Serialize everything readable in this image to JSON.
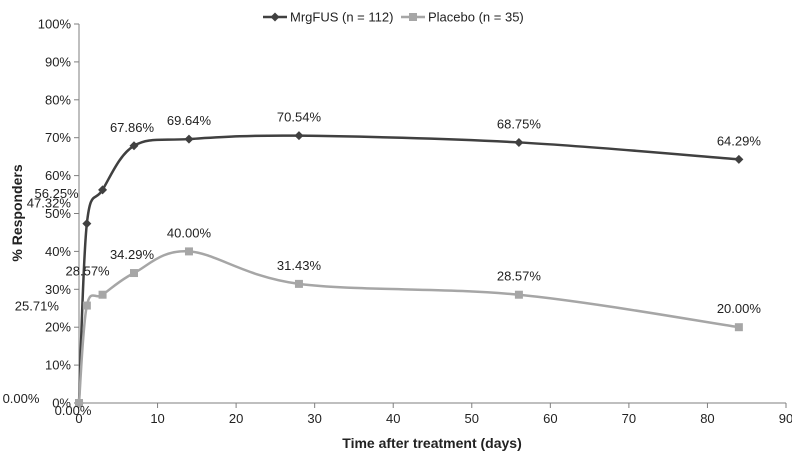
{
  "chart_data": {
    "type": "line",
    "title": "",
    "xlabel": "Time after treatment (days)",
    "ylabel": "% Responders",
    "xlim": [
      0,
      90
    ],
    "ylim": [
      0,
      100
    ],
    "x_ticks": [
      0,
      10,
      20,
      30,
      40,
      50,
      60,
      70,
      80,
      90
    ],
    "y_ticks": [
      0,
      10,
      20,
      30,
      40,
      50,
      60,
      70,
      80,
      90,
      100
    ],
    "y_tick_suffix": "%",
    "grid": false,
    "legend_position": "top",
    "smooth": true,
    "series": [
      {
        "name": "MrgFUS (n = 112)",
        "color": "#404040",
        "marker": "diamond",
        "x": [
          0,
          1,
          3,
          7,
          14,
          28,
          56,
          84
        ],
        "y": [
          0,
          47.32,
          56.25,
          67.86,
          69.64,
          70.54,
          68.75,
          64.29
        ],
        "labels": [
          "0.00%",
          "47.32%",
          "56.25%",
          "67.86%",
          "69.64%",
          "70.54%",
          "68.75%",
          "64.29%"
        ]
      },
      {
        "name": "Placebo (n = 35)",
        "color": "#a6a6a6",
        "marker": "square",
        "x": [
          0,
          1,
          3,
          7,
          14,
          28,
          56,
          84
        ],
        "y": [
          0,
          25.71,
          28.57,
          34.29,
          40.0,
          31.43,
          28.57,
          20.0
        ],
        "labels": [
          "0.00%",
          "25.71%",
          "28.57%",
          "34.29%",
          "40.00%",
          "31.43%",
          "28.57%",
          "20.00%"
        ]
      }
    ]
  }
}
